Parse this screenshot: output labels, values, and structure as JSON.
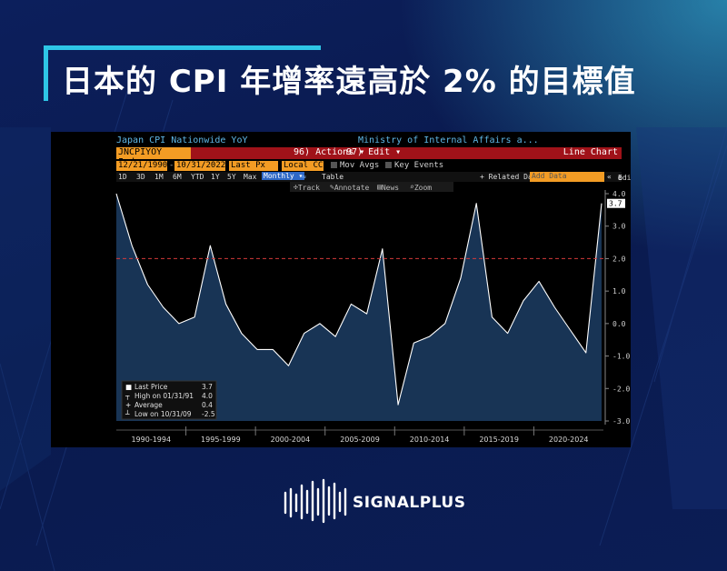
{
  "page": {
    "title": "日本的 CPI 年增率遠高於 2% 的目標值"
  },
  "terminal": {
    "series_name": "Japan CPI Nationwide YoY",
    "source": "Ministry of Internal Affairs a...",
    "ticker": "JNCPIYOY Index",
    "actions_label": "96) Actions ▾",
    "edit_label": "97) Edit ▾",
    "chart_kind": "Line Chart",
    "start_date": "12/21/1990",
    "end_date": "10/31/2022",
    "price_field": "Last Px",
    "currency": "Local CCY",
    "mov_avgs": "Mov Avgs",
    "key_events": "Key Events",
    "periods": [
      "1D",
      "3D",
      "1M",
      "6M",
      "YTD",
      "1Y",
      "5Y",
      "Max"
    ],
    "frequency": "Monthly ▾",
    "table_label": "Table",
    "related_data": "+ Related Dat",
    "add_data": "Add Data",
    "edit_chart": "Edit Chart",
    "tools": {
      "track": "Track",
      "annotate": "Annotate",
      "news": "News",
      "zoom": "Zoom"
    }
  },
  "chart_data": {
    "type": "area",
    "x": [
      1991,
      1992,
      1993,
      1994,
      1995,
      1996,
      1997,
      1998,
      1999,
      2000,
      2001,
      2002,
      2003,
      2004,
      2005,
      2006,
      2007,
      2008,
      2009,
      2010,
      2011,
      2012,
      2013,
      2014,
      2015,
      2016,
      2017,
      2018,
      2019,
      2020,
      2021,
      2022
    ],
    "values": [
      4.0,
      2.4,
      1.2,
      0.5,
      0.0,
      0.2,
      2.4,
      0.6,
      -0.3,
      -0.8,
      -0.8,
      -1.3,
      -0.3,
      0.0,
      -0.4,
      0.6,
      0.3,
      2.3,
      -2.5,
      -0.6,
      -0.4,
      0.0,
      1.4,
      3.7,
      0.2,
      -0.3,
      0.7,
      1.3,
      0.5,
      -0.2,
      -0.9,
      3.7
    ],
    "x_labels": [
      "1990-1994",
      "1995-1999",
      "2000-2004",
      "2005-2009",
      "2010-2014",
      "2015-2019",
      "2020-2024"
    ],
    "y_ticks": [
      "4.0",
      "3.0",
      "2.0",
      "1.0",
      "0.0",
      "-1.0",
      "-2.0",
      "-3.0"
    ],
    "ylim": [
      -3.0,
      4.0
    ],
    "target_line": 2.0,
    "last_value_label": "3.7",
    "legend": {
      "last_price_label": "Last Price",
      "last_price": "3.7",
      "high_label": "High on 01/31/91",
      "high": "4.0",
      "average_label": "Average",
      "average": "0.4",
      "low_label": "Low on 10/31/09",
      "low": "-2.5"
    },
    "colors": {
      "line": "#ffffff",
      "fill": "#1b3a5e",
      "target": "#d43a3a"
    }
  },
  "brand": {
    "name": "SIGNALPLUS"
  }
}
